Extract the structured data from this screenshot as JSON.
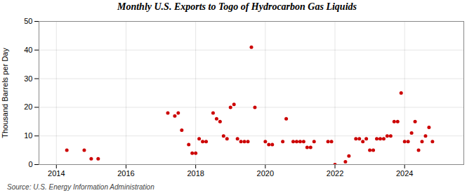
{
  "chart_data": {
    "type": "scatter",
    "title": "Monthly U.S. Exports to Togo of Hydrocarbon Gas Liquids",
    "ylabel": "Thousand Barrels per Day",
    "source": "Source: U.S. Energy Information Administration",
    "color": "#cc0000",
    "grid": true,
    "xlim": [
      2013.5,
      2025.7
    ],
    "ylim": [
      0,
      50
    ],
    "xticks": [
      2014,
      2016,
      2018,
      2020,
      2022,
      2024
    ],
    "yticks": [
      0,
      10,
      20,
      30,
      40,
      50
    ],
    "x": [
      2014.3,
      2014.8,
      2015.0,
      2015.2,
      2017.2,
      2017.4,
      2017.5,
      2017.6,
      2017.8,
      2017.9,
      2018.0,
      2018.1,
      2018.2,
      2018.3,
      2018.5,
      2018.6,
      2018.7,
      2018.8,
      2018.9,
      2019.0,
      2019.1,
      2019.2,
      2019.3,
      2019.4,
      2019.5,
      2019.6,
      2019.7,
      2020.0,
      2020.1,
      2020.2,
      2020.5,
      2020.6,
      2020.8,
      2020.9,
      2021.0,
      2021.1,
      2021.2,
      2021.3,
      2021.4,
      2021.8,
      2021.9,
      2022.0,
      2022.3,
      2022.4,
      2022.6,
      2022.7,
      2022.8,
      2022.9,
      2023.0,
      2023.1,
      2023.2,
      2023.3,
      2023.4,
      2023.5,
      2023.6,
      2023.7,
      2023.8,
      2023.9,
      2024.0,
      2024.1,
      2024.2,
      2024.3,
      2024.4,
      2024.5,
      2024.6,
      2024.7,
      2024.8
    ],
    "values": [
      5,
      5,
      2,
      2,
      18,
      17,
      18,
      12,
      7,
      4,
      4,
      9,
      8,
      8,
      18,
      16,
      15,
      10,
      9,
      20,
      21,
      9,
      8,
      8,
      8,
      41,
      20,
      8,
      7,
      7,
      8,
      16,
      8,
      8,
      8,
      8,
      6,
      6,
      8,
      8,
      8,
      0,
      1,
      3,
      9,
      9,
      8,
      9,
      5,
      5,
      9,
      9,
      9,
      10,
      10,
      15,
      15,
      25,
      8,
      8,
      11,
      15,
      5,
      8,
      10,
      13,
      8
    ]
  }
}
